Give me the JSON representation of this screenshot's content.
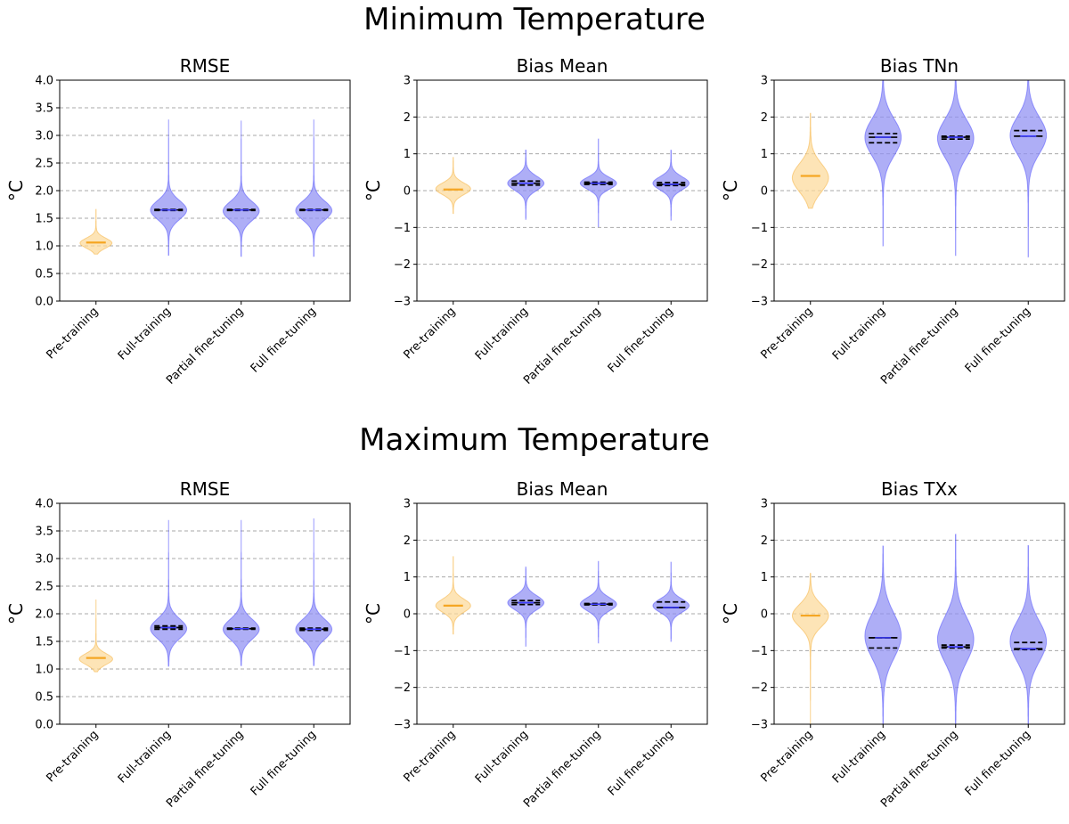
{
  "sections": [
    {
      "title": "Minimum Temperature"
    },
    {
      "title": "Maximum Temperature"
    }
  ],
  "colors": {
    "baseline": "#f5a623",
    "baseline_fill": "#fcd99a",
    "model": "#3b3bff",
    "model_fill": "#8f8ff2",
    "grid": "#a9a9a9"
  },
  "chart_data": [
    {
      "type": "violin",
      "section": 0,
      "title": "RMSE",
      "ylabel": "°C",
      "ylim": [
        0,
        4
      ],
      "yticks": [
        "0.0",
        "0.5",
        "1.0",
        "1.5",
        "2.0",
        "2.5",
        "3.0",
        "3.5",
        "4.0"
      ],
      "ytick_values": [
        0,
        0.5,
        1,
        1.5,
        2,
        2.5,
        3,
        3.5,
        4
      ],
      "grid": "dashed-horizontal",
      "categories": [
        "Pre-training",
        "Full-training",
        "Partial fine-tuning",
        "Full fine-tuning"
      ],
      "distributions": [
        {
          "min": 0.85,
          "max": 1.66,
          "center": 1.05,
          "spread": 0.09,
          "width": 0.44,
          "median": 1.06,
          "q1": null,
          "q3": null
        },
        {
          "min": 0.83,
          "max": 3.28,
          "center": 1.65,
          "spread": 0.17,
          "width": 0.5,
          "median": 1.65,
          "q1": 1.64,
          "q3": 1.66
        },
        {
          "min": 0.81,
          "max": 3.26,
          "center": 1.63,
          "spread": 0.17,
          "width": 0.5,
          "median": 1.65,
          "q1": 1.64,
          "q3": 1.66
        },
        {
          "min": 0.81,
          "max": 3.28,
          "center": 1.64,
          "spread": 0.17,
          "width": 0.5,
          "median": 1.65,
          "q1": 1.64,
          "q3": 1.66
        }
      ]
    },
    {
      "type": "violin",
      "section": 0,
      "title": "Bias Mean",
      "ylabel": "°C",
      "ylim": [
        -3,
        3
      ],
      "yticks": [
        "−3",
        "−2",
        "−1",
        "0",
        "1",
        "2",
        "3"
      ],
      "ytick_values": [
        -3,
        -2,
        -1,
        0,
        1,
        2,
        3
      ],
      "grid": "dashed-horizontal",
      "categories": [
        "Pre-training",
        "Full-training",
        "Partial fine-tuning",
        "Full fine-tuning"
      ],
      "distributions": [
        {
          "min": -0.62,
          "max": 0.9,
          "center": 0.05,
          "spread": 0.16,
          "width": 0.48,
          "median": 0.03,
          "q1": null,
          "q3": null
        },
        {
          "min": -0.78,
          "max": 1.1,
          "center": 0.2,
          "spread": 0.19,
          "width": 0.5,
          "median": 0.2,
          "q1": 0.15,
          "q3": 0.26
        },
        {
          "min": -0.98,
          "max": 1.4,
          "center": 0.2,
          "spread": 0.16,
          "width": 0.5,
          "median": 0.2,
          "q1": 0.17,
          "q3": 0.23
        },
        {
          "min": -0.8,
          "max": 1.1,
          "center": 0.2,
          "spread": 0.18,
          "width": 0.5,
          "median": 0.17,
          "q1": 0.14,
          "q3": 0.22
        }
      ]
    },
    {
      "type": "violin",
      "section": 0,
      "title": "Bias TNn",
      "ylabel": "°C",
      "ylim": [
        -3,
        3
      ],
      "yticks": [
        "−3",
        "−2",
        "−1",
        "0",
        "1",
        "2",
        "3"
      ],
      "ytick_values": [
        -3,
        -2,
        -1,
        0,
        1,
        2,
        3
      ],
      "grid": "dashed-horizontal",
      "categories": [
        "Pre-training",
        "Full-training",
        "Partial fine-tuning",
        "Full fine-tuning"
      ],
      "distributions": [
        {
          "min": -0.48,
          "max": 2.1,
          "center": 0.35,
          "spread": 0.38,
          "width": 0.5,
          "median": 0.4,
          "q1": null,
          "q3": null
        },
        {
          "min": -1.5,
          "max": 3.0,
          "center": 1.45,
          "spread": 0.5,
          "width": 0.5,
          "median": 1.45,
          "q1": 1.3,
          "q3": 1.55
        },
        {
          "min": -1.76,
          "max": 3.0,
          "center": 1.42,
          "spread": 0.5,
          "width": 0.5,
          "median": 1.45,
          "q1": 1.4,
          "q3": 1.48
        },
        {
          "min": -1.8,
          "max": 3.0,
          "center": 1.5,
          "spread": 0.5,
          "width": 0.5,
          "median": 1.48,
          "q1": 1.48,
          "q3": 1.63
        }
      ]
    },
    {
      "type": "violin",
      "section": 1,
      "title": "RMSE",
      "ylabel": "°C",
      "ylim": [
        0,
        4
      ],
      "yticks": [
        "0.0",
        "0.5",
        "1.0",
        "1.5",
        "2.0",
        "2.5",
        "3.0",
        "3.5",
        "4.0"
      ],
      "ytick_values": [
        0,
        0.5,
        1,
        1.5,
        2,
        2.5,
        3,
        3.5,
        4
      ],
      "grid": "dashed-horizontal",
      "categories": [
        "Pre-training",
        "Full-training",
        "Partial fine-tuning",
        "Full fine-tuning"
      ],
      "distributions": [
        {
          "min": 0.95,
          "max": 2.25,
          "center": 1.18,
          "spread": 0.1,
          "width": 0.46,
          "median": 1.2,
          "q1": null,
          "q3": null
        },
        {
          "min": 1.05,
          "max": 3.69,
          "center": 1.73,
          "spread": 0.18,
          "width": 0.5,
          "median": 1.75,
          "q1": 1.72,
          "q3": 1.78
        },
        {
          "min": 1.06,
          "max": 3.69,
          "center": 1.72,
          "spread": 0.18,
          "width": 0.5,
          "median": 1.73,
          "q1": 1.72,
          "q3": 1.74
        },
        {
          "min": 1.06,
          "max": 3.72,
          "center": 1.72,
          "spread": 0.18,
          "width": 0.5,
          "median": 1.72,
          "q1": 1.7,
          "q3": 1.74
        }
      ]
    },
    {
      "type": "violin",
      "section": 1,
      "title": "Bias Mean",
      "ylabel": "°C",
      "ylim": [
        -3,
        3
      ],
      "yticks": [
        "−3",
        "−2",
        "−1",
        "0",
        "1",
        "2",
        "3"
      ],
      "ytick_values": [
        -3,
        -2,
        -1,
        0,
        1,
        2,
        3
      ],
      "grid": "dashed-horizontal",
      "categories": [
        "Pre-training",
        "Full-training",
        "Partial fine-tuning",
        "Full fine-tuning"
      ],
      "distributions": [
        {
          "min": -0.55,
          "max": 1.55,
          "center": 0.22,
          "spread": 0.18,
          "width": 0.48,
          "median": 0.22,
          "q1": null,
          "q3": null
        },
        {
          "min": -0.88,
          "max": 1.27,
          "center": 0.3,
          "spread": 0.19,
          "width": 0.5,
          "median": 0.3,
          "q1": 0.25,
          "q3": 0.36
        },
        {
          "min": -0.79,
          "max": 1.45,
          "center": 0.26,
          "spread": 0.18,
          "width": 0.5,
          "median": 0.26,
          "q1": 0.24,
          "q3": 0.28
        },
        {
          "min": -0.75,
          "max": 1.4,
          "center": 0.22,
          "spread": 0.18,
          "width": 0.5,
          "median": 0.17,
          "q1": 0.17,
          "q3": 0.32
        }
      ]
    },
    {
      "type": "violin",
      "section": 1,
      "title": "Bias TXx",
      "ylabel": "°C",
      "ylim": [
        -3,
        3
      ],
      "yticks": [
        "−3",
        "−2",
        "−1",
        "0",
        "1",
        "2",
        "3"
      ],
      "ytick_values": [
        -3,
        -2,
        -1,
        0,
        1,
        2,
        3
      ],
      "grid": "dashed-horizontal",
      "categories": [
        "Pre-training",
        "Full-training",
        "Partial fine-tuning",
        "Full fine-tuning"
      ],
      "distributions": [
        {
          "min": -3.0,
          "max": 1.15,
          "center": -0.05,
          "spread": 0.3,
          "width": 0.5,
          "median": -0.05,
          "q1": null,
          "q3": null
        },
        {
          "min": -3.0,
          "max": 1.9,
          "center": -0.6,
          "spread": 0.6,
          "width": 0.5,
          "median": -0.65,
          "q1": -0.93,
          "q3": -0.65
        },
        {
          "min": -3.0,
          "max": 2.22,
          "center": -0.7,
          "spread": 0.6,
          "width": 0.5,
          "median": -0.9,
          "q1": -0.93,
          "q3": -0.85
        },
        {
          "min": -3.0,
          "max": 1.85,
          "center": -0.75,
          "spread": 0.55,
          "width": 0.5,
          "median": -0.95,
          "q1": -0.97,
          "q3": -0.78
        }
      ]
    }
  ]
}
